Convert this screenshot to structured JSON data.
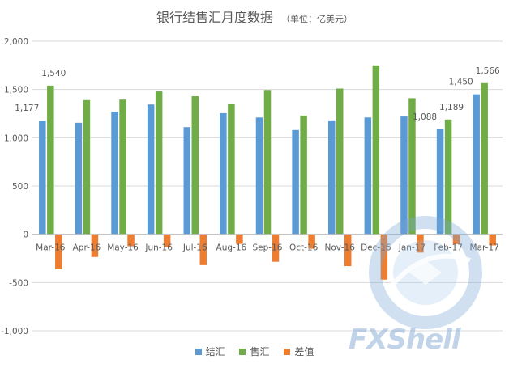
{
  "title": {
    "main": "银行结售汇月度数据",
    "sub": "（单位：亿美元）"
  },
  "colors": {
    "结汇": "#5b9bd5",
    "售汇": "#70ad47",
    "差值": "#ed7d31",
    "gridline": "#d9d9d9",
    "axis_text": "#595959"
  },
  "legend": [
    "结汇",
    "售汇",
    "差值"
  ],
  "watermark": {
    "text": "FXShell",
    "icon": "fxshell-logo-icon"
  },
  "chart_data": {
    "type": "bar",
    "title": "银行结售汇月度数据",
    "subtitle": "（单位：亿美元）",
    "categories": [
      "Mar-16",
      "Apr-16",
      "May-16",
      "Jun-16",
      "Jul-16",
      "Aug-16",
      "Sep-16",
      "Oct-16",
      "Nov-16",
      "Dec-16",
      "Jan-17",
      "Feb-17",
      "Mar-17"
    ],
    "series": [
      {
        "name": "结汇",
        "values": [
          1177,
          1155,
          1270,
          1345,
          1110,
          1255,
          1210,
          1080,
          1180,
          1210,
          1220,
          1088,
          1450
        ]
      },
      {
        "name": "售汇",
        "values": [
          1540,
          1390,
          1395,
          1480,
          1430,
          1355,
          1495,
          1230,
          1510,
          1750,
          1410,
          1189,
          1566
        ]
      },
      {
        "name": "差值",
        "values": [
          -363,
          -235,
          -125,
          -135,
          -320,
          -100,
          -285,
          -150,
          -330,
          -470,
          -190,
          -101,
          -116
        ]
      }
    ],
    "data_labels": [
      {
        "series": "结汇",
        "category": "Mar-16",
        "text": "1,177"
      },
      {
        "series": "售汇",
        "category": "Mar-16",
        "text": "1,540"
      },
      {
        "series": "结汇",
        "category": "Feb-17",
        "text": "1,088"
      },
      {
        "series": "售汇",
        "category": "Feb-17",
        "text": "1,189"
      },
      {
        "series": "结汇",
        "category": "Mar-17",
        "text": "1,450"
      },
      {
        "series": "售汇",
        "category": "Mar-17",
        "text": "1,566"
      }
    ],
    "ylim": [
      -1000,
      2000
    ],
    "yticks": [
      -1000,
      -500,
      0,
      500,
      1000,
      1500,
      2000
    ],
    "ytick_labels": [
      "-1,000",
      "-500",
      "0",
      "500",
      "1,000",
      "1,500",
      "2,000"
    ],
    "grid": true,
    "legend_position": "bottom"
  }
}
